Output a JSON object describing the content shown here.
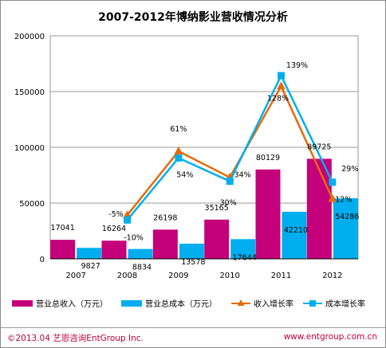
{
  "chart_data": {
    "type": "bar",
    "title": "2007-2012年博纳影业营收情况分析",
    "categories": [
      "2007",
      "2008",
      "2009",
      "2010",
      "2011",
      "2012"
    ],
    "ylim": [
      0,
      200000
    ],
    "yticks": [
      "0",
      "50000",
      "100000",
      "150000",
      "200000"
    ],
    "grid": true,
    "legend_position": "bottom",
    "series": [
      {
        "name": "营业总收入（万元）",
        "kind": "bar",
        "color": "#c4007a",
        "values": [
          17041,
          16264,
          26198,
          35165,
          80129,
          89725
        ],
        "labels": [
          "17041",
          "16264",
          "26198",
          "35165",
          "80129",
          "89725"
        ]
      },
      {
        "name": "营业总成本（万元）",
        "kind": "bar",
        "color": "#00aeef",
        "values": [
          9827,
          8834,
          13578,
          17644,
          42210,
          54286
        ],
        "labels": [
          "9827",
          "8834",
          "13578",
          "17644",
          "42210",
          "54286"
        ]
      },
      {
        "name": "收入增长率",
        "kind": "line",
        "color": "#e36c09",
        "values": [
          null,
          -5,
          61,
          34,
          128,
          12
        ],
        "labels": [
          null,
          "-5%",
          "61%",
          "34%",
          "128%",
          "12%"
        ]
      },
      {
        "name": "成本增长率",
        "kind": "line",
        "color": "#00aeef",
        "values": [
          null,
          -10,
          54,
          30,
          139,
          29
        ],
        "labels": [
          null,
          "-10%",
          "54%",
          "30%",
          "139%",
          "29%"
        ]
      }
    ]
  },
  "footer": {
    "copyright": "©2013.04  艺恩咨询EntGroup Inc.",
    "website": "www.entgroup.com.cn"
  }
}
